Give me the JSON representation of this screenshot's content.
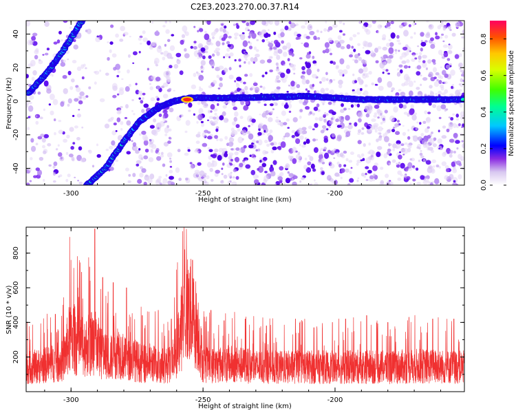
{
  "title": "C2E3.2023.270.00.37.R14",
  "chart_data": [
    {
      "type": "heatmap",
      "xlabel": "Height of straight line (km)",
      "ylabel": "Frequency (Hz)",
      "xlim": [
        -317,
        -151
      ],
      "ylim": [
        -50,
        48
      ],
      "x_ticks": [
        -300,
        -250,
        -200
      ],
      "y_ticks": [
        -40,
        -20,
        0,
        20,
        40
      ],
      "colorbar": {
        "label": "Normalized spectral amplitude",
        "range": [
          0.0,
          0.9
        ],
        "ticks": [
          0.0,
          0.2,
          0.4,
          0.6,
          0.8
        ],
        "tick_labels": [
          "0.0",
          "0.2",
          "0.4",
          "0.6",
          "0.8"
        ]
      },
      "traces": [
        {
          "name": "",
          "points": [
            [
              -316,
              5
            ],
            [
              -309,
              17
            ],
            [
              -303,
              30
            ],
            [
              -295,
              50
            ]
          ]
        },
        {
          "name": "",
          "points": [
            [
              -294,
              -50
            ],
            [
              -287,
              -40
            ],
            [
              -280,
              -24
            ],
            [
              -274,
              -12
            ],
            [
              -267,
              -4
            ],
            [
              -261,
              0
            ],
            [
              -255,
              2
            ],
            [
              -240,
              2
            ],
            [
              -210,
              3
            ],
            [
              -190,
              1
            ],
            [
              -151,
              1
            ]
          ]
        }
      ],
      "peak": {
        "x": -256,
        "y": 1,
        "value": 0.85
      }
    },
    {
      "type": "line",
      "xlabel": "Height of straight line (km)",
      "ylabel": "SNR (10 * v/v)",
      "xlim": [
        -317,
        -151
      ],
      "ylim": [
        0,
        950
      ],
      "x_ticks": [
        -300,
        -250,
        -200
      ],
      "y_ticks": [
        200,
        400,
        600,
        800
      ],
      "color": "#f03030",
      "envelope": [
        [
          -317,
          170
        ],
        [
          -310,
          190
        ],
        [
          -303,
          220
        ],
        [
          -300,
          420
        ],
        [
          -297,
          320
        ],
        [
          -294,
          330
        ],
        [
          -291,
          380
        ],
        [
          -288,
          260
        ],
        [
          -285,
          240
        ],
        [
          -282,
          300
        ],
        [
          -279,
          220
        ],
        [
          -276,
          230
        ],
        [
          -273,
          200
        ],
        [
          -270,
          210
        ],
        [
          -267,
          190
        ],
        [
          -264,
          190
        ],
        [
          -262,
          200
        ],
        [
          -260,
          300
        ],
        [
          -258,
          480
        ],
        [
          -256,
          600
        ],
        [
          -254,
          560
        ],
        [
          -252,
          450
        ],
        [
          -250,
          200
        ],
        [
          -246,
          190
        ],
        [
          -240,
          200
        ],
        [
          -230,
          180
        ],
        [
          -220,
          175
        ],
        [
          -210,
          180
        ],
        [
          -200,
          175
        ],
        [
          -190,
          180
        ],
        [
          -180,
          175
        ],
        [
          -170,
          185
        ],
        [
          -160,
          180
        ],
        [
          -151,
          175
        ]
      ],
      "spikes": [
        [
          -300,
          760
        ],
        [
          -296,
          690
        ],
        [
          -293,
          720
        ],
        [
          -291,
          940
        ],
        [
          -288,
          660
        ],
        [
          -284,
          630
        ],
        [
          -279,
          600
        ],
        [
          -273,
          440
        ],
        [
          -267,
          470
        ],
        [
          -262,
          420
        ],
        [
          -257,
          820
        ],
        [
          -254,
          760
        ],
        [
          -247,
          470
        ],
        [
          -242,
          410
        ],
        [
          -234,
          420
        ],
        [
          -226,
          380
        ],
        [
          -215,
          420
        ],
        [
          -208,
          370
        ],
        [
          -201,
          400
        ],
        [
          -196,
          420
        ],
        [
          -188,
          440
        ],
        [
          -180,
          400
        ],
        [
          -172,
          430
        ],
        [
          -163,
          420
        ],
        [
          -155,
          420
        ]
      ]
    }
  ]
}
